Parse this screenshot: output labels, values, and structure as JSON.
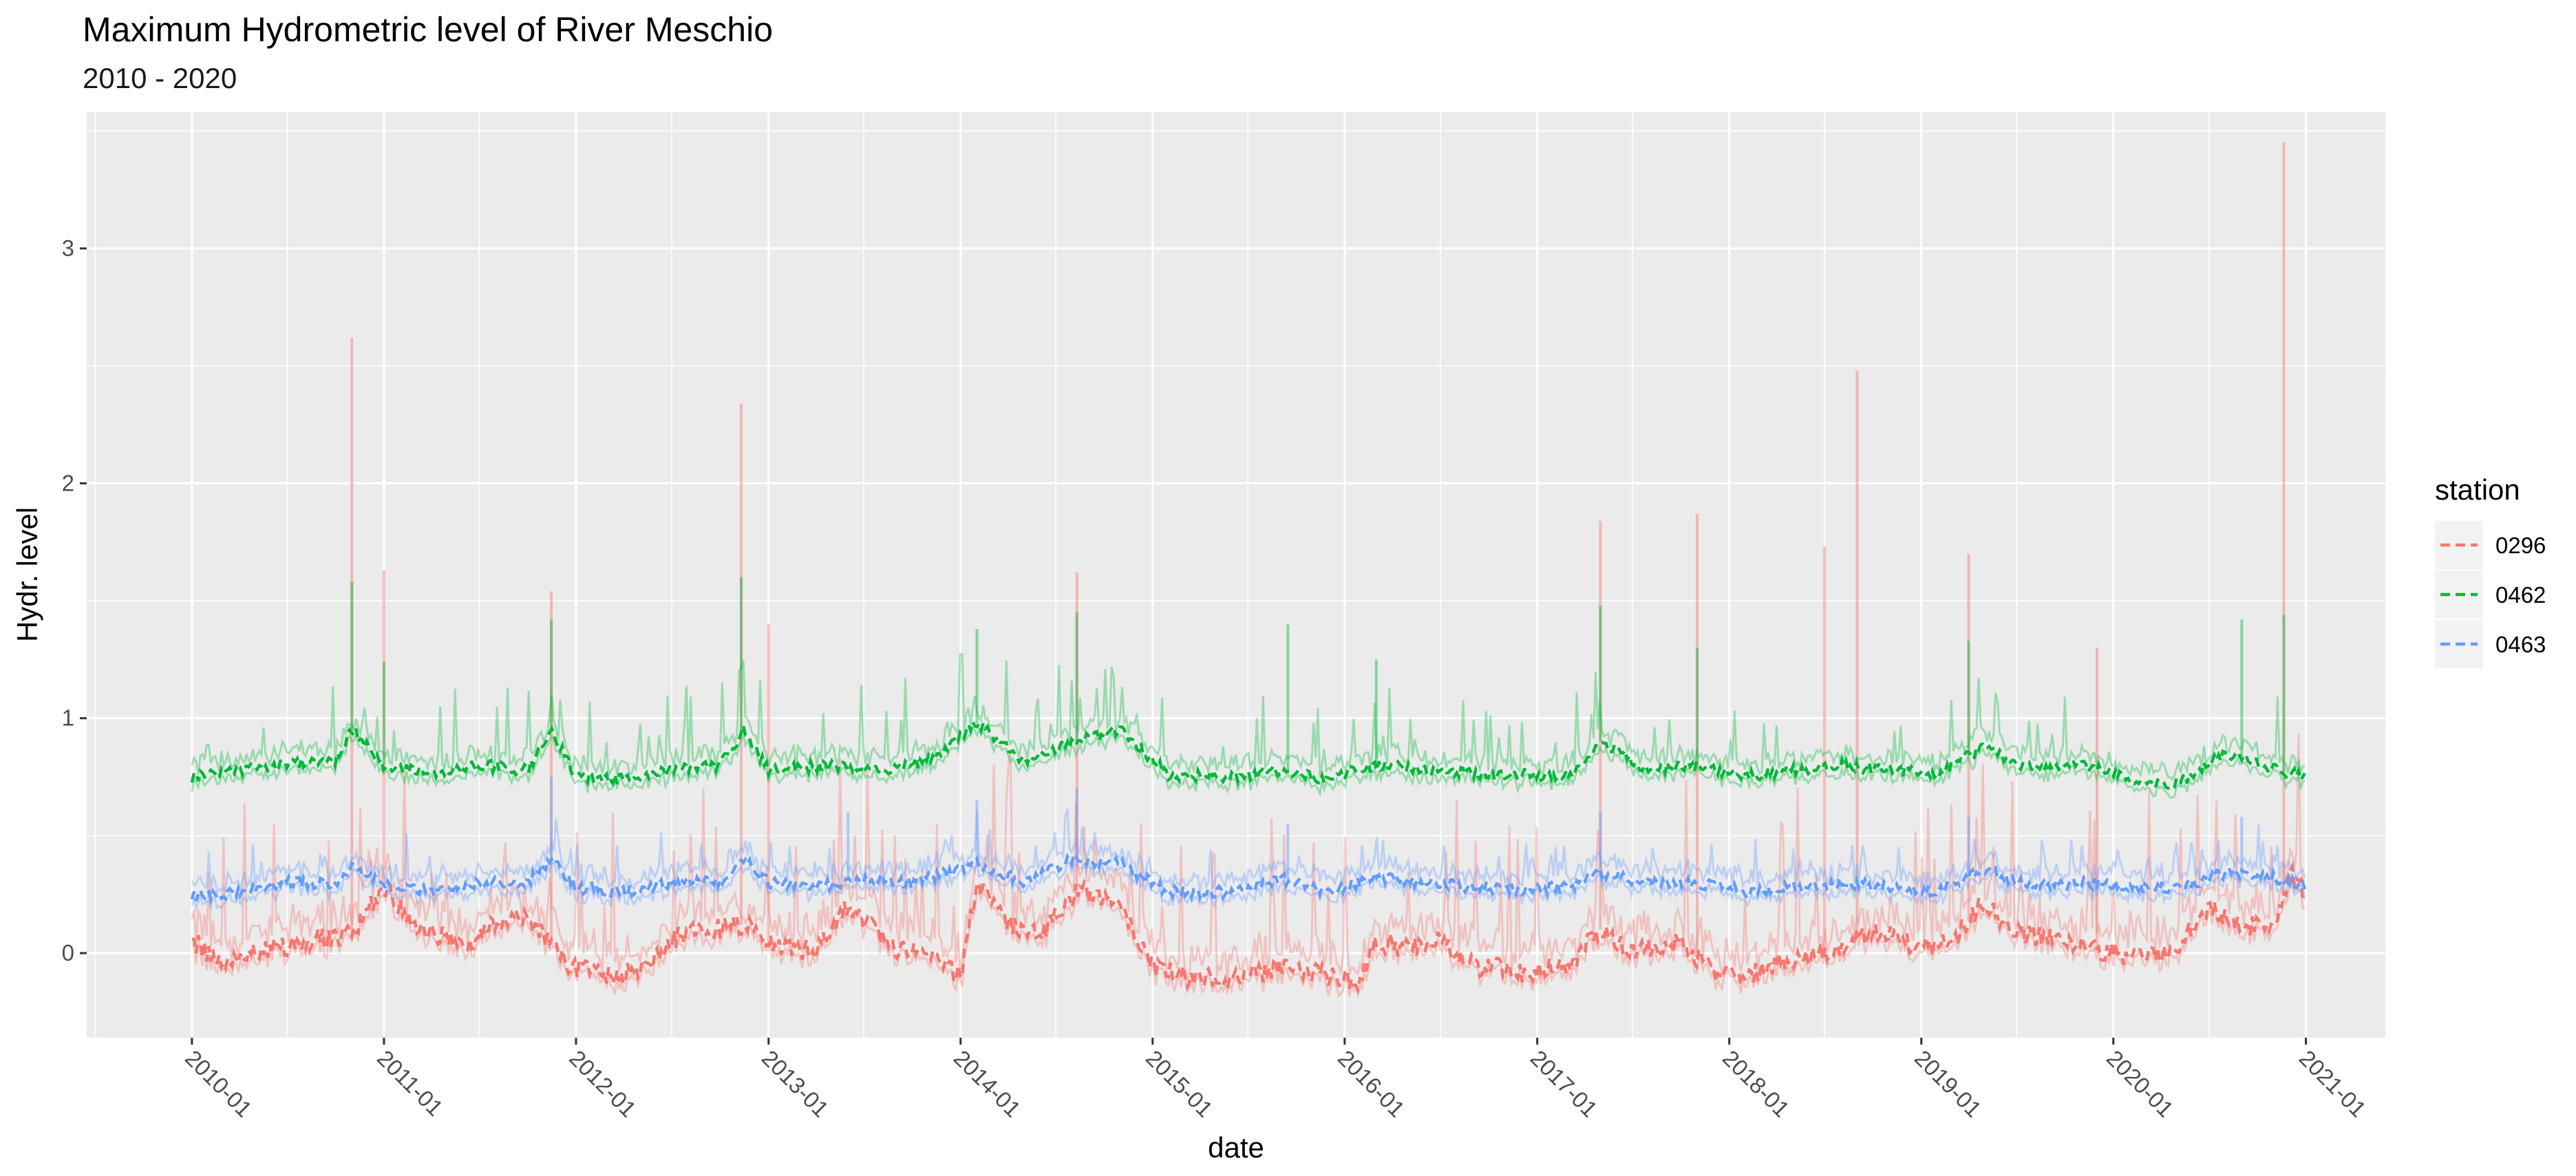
{
  "chart_data": {
    "type": "line",
    "title": "Maximum Hydrometric level of River Meschio",
    "subtitle": "2010 - 2020",
    "xlabel": "date",
    "ylabel": "Hydr. level",
    "x_range": [
      "2009-06-15",
      "2021-06-01"
    ],
    "ylim": [
      -0.36,
      3.58
    ],
    "x_tick_labels": [
      "2010-01",
      "2011-01",
      "2012-01",
      "2013-01",
      "2014-01",
      "2015-01",
      "2016-01",
      "2017-01",
      "2018-01",
      "2019-01",
      "2020-01",
      "2021-01"
    ],
    "y_ticks": [
      0,
      1,
      2,
      3
    ],
    "grid": true,
    "legend": {
      "title": "station",
      "position": "right"
    },
    "series": [
      {
        "name": "0296",
        "color": "#F8766D",
        "style": "dashed mean line with light min-max range lines",
        "points": [
          [
            "2010-01-01",
            0.05
          ],
          [
            "2010-03-01",
            -0.04
          ],
          [
            "2010-06-01",
            0.02
          ],
          [
            "2010-09-01",
            0.06
          ],
          [
            "2010-11-01",
            0.08
          ],
          [
            "2011-01-01",
            0.28
          ],
          [
            "2011-03-01",
            0.12
          ],
          [
            "2011-06-01",
            0.03
          ],
          [
            "2011-08-01",
            0.14
          ],
          [
            "2011-10-01",
            0.16
          ],
          [
            "2011-12-15",
            -0.05
          ],
          [
            "2012-03-01",
            -0.1
          ],
          [
            "2012-05-01",
            -0.08
          ],
          [
            "2012-07-01",
            0.06
          ],
          [
            "2012-09-01",
            0.1
          ],
          [
            "2012-11-15",
            0.12
          ],
          [
            "2013-01-01",
            0.05
          ],
          [
            "2013-04-01",
            0.0
          ],
          [
            "2013-06-01",
            0.2
          ],
          [
            "2013-09-01",
            0.02
          ],
          [
            "2013-11-01",
            -0.02
          ],
          [
            "2014-01-01",
            -0.1
          ],
          [
            "2014-02-01",
            0.3
          ],
          [
            "2014-04-01",
            0.12
          ],
          [
            "2014-06-01",
            0.08
          ],
          [
            "2014-08-15",
            0.28
          ],
          [
            "2014-11-01",
            0.2
          ],
          [
            "2015-01-01",
            -0.05
          ],
          [
            "2015-03-01",
            -0.1
          ],
          [
            "2015-06-01",
            -0.12
          ],
          [
            "2015-09-01",
            -0.06
          ],
          [
            "2015-12-01",
            -0.1
          ],
          [
            "2016-02-01",
            -0.12
          ],
          [
            "2016-03-01",
            0.05
          ],
          [
            "2016-05-01",
            0.02
          ],
          [
            "2016-07-01",
            0.05
          ],
          [
            "2016-09-01",
            -0.05
          ],
          [
            "2016-12-01",
            -0.08
          ],
          [
            "2017-03-01",
            -0.06
          ],
          [
            "2017-05-01",
            0.1
          ],
          [
            "2017-07-01",
            0.0
          ],
          [
            "2017-10-01",
            0.05
          ],
          [
            "2017-12-01",
            -0.08
          ],
          [
            "2018-02-01",
            -0.1
          ],
          [
            "2018-05-01",
            -0.02
          ],
          [
            "2018-08-01",
            0.02
          ],
          [
            "2018-10-01",
            0.1
          ],
          [
            "2019-01-01",
            0.02
          ],
          [
            "2019-03-01",
            0.05
          ],
          [
            "2019-05-01",
            0.22
          ],
          [
            "2019-07-01",
            0.08
          ],
          [
            "2019-10-01",
            0.05
          ],
          [
            "2020-01-01",
            0.0
          ],
          [
            "2020-03-01",
            -0.02
          ],
          [
            "2020-05-01",
            0.02
          ],
          [
            "2020-07-01",
            0.2
          ],
          [
            "2020-09-01",
            0.12
          ],
          [
            "2020-11-01",
            0.1
          ],
          [
            "2020-12-01",
            0.35
          ],
          [
            "2021-01-01",
            0.25
          ]
        ],
        "max_peaks": [
          [
            "2010-11-01",
            2.62
          ],
          [
            "2011-01-01",
            1.63
          ],
          [
            "2011-11-15",
            1.54
          ],
          [
            "2012-11-10",
            2.34
          ],
          [
            "2013-01-01",
            1.4
          ],
          [
            "2014-08-10",
            1.62
          ],
          [
            "2017-05-01",
            1.84
          ],
          [
            "2017-11-01",
            1.87
          ],
          [
            "2018-07-01",
            1.73
          ],
          [
            "2018-09-01",
            2.48
          ],
          [
            "2019-04-01",
            1.7
          ],
          [
            "2019-12-01",
            1.3
          ],
          [
            "2020-11-20",
            3.45
          ]
        ]
      },
      {
        "name": "0462",
        "color": "#00BA38",
        "style": "dashed mean line with light min-max range lines",
        "points": [
          [
            "2010-01-01",
            0.75
          ],
          [
            "2010-04-01",
            0.78
          ],
          [
            "2010-07-01",
            0.8
          ],
          [
            "2010-10-01",
            0.82
          ],
          [
            "2010-11-01",
            0.95
          ],
          [
            "2011-01-01",
            0.8
          ],
          [
            "2011-04-01",
            0.76
          ],
          [
            "2011-07-01",
            0.8
          ],
          [
            "2011-10-01",
            0.78
          ],
          [
            "2011-11-15",
            0.95
          ],
          [
            "2012-01-01",
            0.75
          ],
          [
            "2012-04-01",
            0.74
          ],
          [
            "2012-07-01",
            0.78
          ],
          [
            "2012-10-01",
            0.8
          ],
          [
            "2012-11-15",
            0.95
          ],
          [
            "2013-01-01",
            0.78
          ],
          [
            "2013-05-01",
            0.8
          ],
          [
            "2013-08-01",
            0.78
          ],
          [
            "2013-11-01",
            0.82
          ],
          [
            "2014-02-01",
            0.98
          ],
          [
            "2014-05-01",
            0.82
          ],
          [
            "2014-08-01",
            0.9
          ],
          [
            "2014-11-01",
            0.95
          ],
          [
            "2015-02-01",
            0.76
          ],
          [
            "2015-06-01",
            0.75
          ],
          [
            "2015-09-01",
            0.78
          ],
          [
            "2015-12-01",
            0.74
          ],
          [
            "2016-03-01",
            0.8
          ],
          [
            "2016-06-01",
            0.78
          ],
          [
            "2016-09-01",
            0.76
          ],
          [
            "2016-12-01",
            0.76
          ],
          [
            "2017-03-01",
            0.75
          ],
          [
            "2017-05-01",
            0.9
          ],
          [
            "2017-08-01",
            0.78
          ],
          [
            "2017-11-01",
            0.8
          ],
          [
            "2018-02-01",
            0.75
          ],
          [
            "2018-05-01",
            0.78
          ],
          [
            "2018-08-01",
            0.8
          ],
          [
            "2018-11-01",
            0.78
          ],
          [
            "2019-02-01",
            0.76
          ],
          [
            "2019-05-01",
            0.88
          ],
          [
            "2019-08-01",
            0.78
          ],
          [
            "2019-11-01",
            0.8
          ],
          [
            "2020-02-01",
            0.74
          ],
          [
            "2020-05-01",
            0.72
          ],
          [
            "2020-08-01",
            0.85
          ],
          [
            "2020-11-01",
            0.78
          ],
          [
            "2021-01-01",
            0.75
          ]
        ],
        "max_peaks": [
          [
            "2010-11-01",
            1.58
          ],
          [
            "2011-01-01",
            1.24
          ],
          [
            "2011-11-15",
            1.42
          ],
          [
            "2012-11-10",
            1.6
          ],
          [
            "2014-02-01",
            1.38
          ],
          [
            "2014-08-10",
            1.45
          ],
          [
            "2015-09-15",
            1.4
          ],
          [
            "2016-03-01",
            1.25
          ],
          [
            "2017-05-01",
            1.48
          ],
          [
            "2017-11-01",
            1.3
          ],
          [
            "2019-04-01",
            1.33
          ],
          [
            "2020-09-01",
            1.42
          ],
          [
            "2020-11-20",
            1.44
          ]
        ]
      },
      {
        "name": "0463",
        "color": "#619CFF",
        "style": "dashed mean line with light min-max range lines",
        "points": [
          [
            "2010-01-01",
            0.24
          ],
          [
            "2010-04-01",
            0.26
          ],
          [
            "2010-07-01",
            0.3
          ],
          [
            "2010-10-01",
            0.3
          ],
          [
            "2010-11-01",
            0.36
          ],
          [
            "2011-01-01",
            0.3
          ],
          [
            "2011-04-01",
            0.26
          ],
          [
            "2011-07-01",
            0.3
          ],
          [
            "2011-10-01",
            0.3
          ],
          [
            "2011-11-15",
            0.4
          ],
          [
            "2012-01-01",
            0.28
          ],
          [
            "2012-04-01",
            0.26
          ],
          [
            "2012-07-01",
            0.3
          ],
          [
            "2012-10-01",
            0.3
          ],
          [
            "2012-11-15",
            0.4
          ],
          [
            "2013-01-01",
            0.3
          ],
          [
            "2013-04-01",
            0.28
          ],
          [
            "2013-07-01",
            0.32
          ],
          [
            "2013-10-01",
            0.3
          ],
          [
            "2014-02-01",
            0.38
          ],
          [
            "2014-05-01",
            0.3
          ],
          [
            "2014-08-01",
            0.4
          ],
          [
            "2014-11-01",
            0.38
          ],
          [
            "2015-02-01",
            0.26
          ],
          [
            "2015-06-01",
            0.26
          ],
          [
            "2015-09-01",
            0.32
          ],
          [
            "2015-12-01",
            0.26
          ],
          [
            "2016-03-01",
            0.32
          ],
          [
            "2016-06-01",
            0.3
          ],
          [
            "2016-09-01",
            0.28
          ],
          [
            "2016-12-01",
            0.27
          ],
          [
            "2017-03-01",
            0.28
          ],
          [
            "2017-05-01",
            0.34
          ],
          [
            "2017-08-01",
            0.3
          ],
          [
            "2017-11-01",
            0.3
          ],
          [
            "2018-02-01",
            0.26
          ],
          [
            "2018-05-01",
            0.28
          ],
          [
            "2018-08-01",
            0.3
          ],
          [
            "2018-11-01",
            0.28
          ],
          [
            "2019-02-01",
            0.26
          ],
          [
            "2019-05-01",
            0.36
          ],
          [
            "2019-08-01",
            0.28
          ],
          [
            "2019-11-01",
            0.3
          ],
          [
            "2020-02-01",
            0.28
          ],
          [
            "2020-05-01",
            0.28
          ],
          [
            "2020-08-01",
            0.34
          ],
          [
            "2020-11-01",
            0.32
          ],
          [
            "2021-01-01",
            0.28
          ]
        ],
        "max_peaks": [
          [
            "2011-11-15",
            0.75
          ],
          [
            "2013-06-01",
            0.6
          ],
          [
            "2014-02-01",
            0.65
          ],
          [
            "2014-08-10",
            0.7
          ],
          [
            "2015-09-15",
            0.55
          ],
          [
            "2017-05-01",
            0.6
          ],
          [
            "2019-04-01",
            0.58
          ],
          [
            "2020-09-01",
            0.58
          ]
        ]
      }
    ]
  }
}
